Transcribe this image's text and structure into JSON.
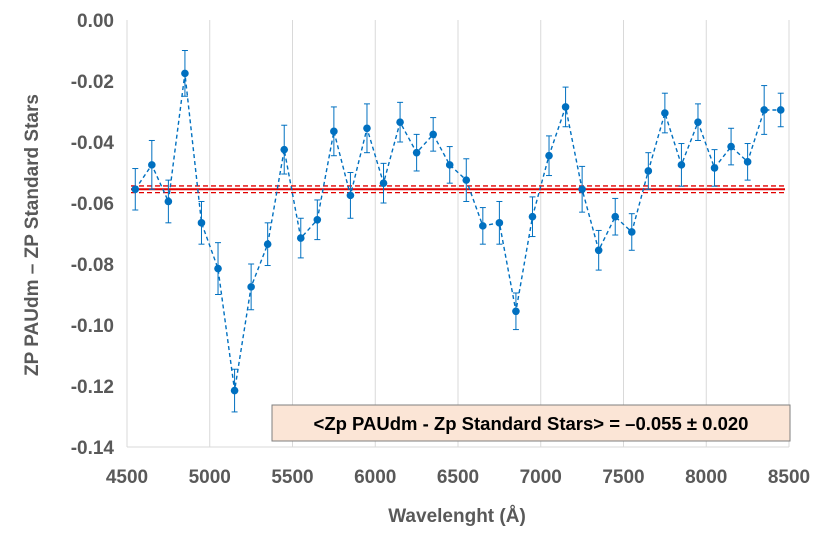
{
  "chart_data": {
    "type": "scatter",
    "title": "",
    "xlabel": "Wavelenght (Å)",
    "ylabel": "ZP PAUdm – ZP Standard Stars",
    "xlim": [
      4500,
      8500
    ],
    "ylim": [
      -0.14,
      0.0
    ],
    "x_ticks": [
      4500,
      5000,
      5500,
      6000,
      6500,
      7000,
      7500,
      8000,
      8500
    ],
    "x_tick_labels": [
      "4500",
      "5000",
      "5500",
      "6000",
      "6500",
      "7000",
      "7500",
      "8000",
      "8500"
    ],
    "y_ticks": [
      0.0,
      -0.02,
      -0.04,
      -0.06,
      -0.08,
      -0.1,
      -0.12,
      -0.14
    ],
    "y_tick_labels": [
      "0.00",
      "-0.02",
      "-0.04",
      "-0.06",
      "-0.08",
      "-0.10",
      "-0.12",
      "-0.14"
    ],
    "grid": "vertical",
    "series": [
      {
        "name": "ZP difference",
        "color": "#0070c0",
        "style": "dashed line with markers and error bars",
        "x": [
          4550,
          4650,
          4750,
          4850,
          4950,
          5050,
          5150,
          5250,
          5350,
          5450,
          5550,
          5650,
          5750,
          5850,
          5950,
          6050,
          6150,
          6250,
          6350,
          6450,
          6550,
          6650,
          6750,
          6850,
          6950,
          7050,
          7150,
          7250,
          7350,
          7450,
          7550,
          7650,
          7750,
          7850,
          7950,
          8050,
          8150,
          8250,
          8350,
          8450
        ],
        "y": [
          -0.0555,
          -0.0475,
          -0.0595,
          -0.0175,
          -0.0665,
          -0.0815,
          -0.1215,
          -0.0875,
          -0.0735,
          -0.0425,
          -0.0715,
          -0.0655,
          -0.0365,
          -0.0575,
          -0.0355,
          -0.0535,
          -0.0335,
          -0.0435,
          -0.0375,
          -0.0475,
          -0.0525,
          -0.0675,
          -0.0665,
          -0.0955,
          -0.0645,
          -0.0445,
          -0.0285,
          -0.0555,
          -0.0755,
          -0.0645,
          -0.0695,
          -0.0495,
          -0.0305,
          -0.0475,
          -0.0335,
          -0.0485,
          -0.0415,
          -0.0465,
          -0.0295,
          -0.0295
        ],
        "error": [
          0.0068,
          0.008,
          0.007,
          0.0075,
          0.007,
          0.0085,
          0.007,
          0.0075,
          0.007,
          0.008,
          0.0065,
          0.0065,
          0.008,
          0.0075,
          0.008,
          0.0065,
          0.0065,
          0.006,
          0.0055,
          0.006,
          0.007,
          0.006,
          0.007,
          0.006,
          0.0065,
          0.0065,
          0.0065,
          0.0075,
          0.0065,
          0.006,
          0.006,
          0.006,
          0.0065,
          0.007,
          0.006,
          0.006,
          0.006,
          0.006,
          0.008,
          0.0055
        ]
      }
    ],
    "mean_line": {
      "value": -0.0555,
      "band": 0.0011,
      "color": "#e00000"
    },
    "annotation": {
      "text": "<Zp PAUdm - Zp Standard Stars> = –0.055 ± 0.020",
      "background": "#fbe5d6",
      "border": "#7f7f7f"
    }
  }
}
